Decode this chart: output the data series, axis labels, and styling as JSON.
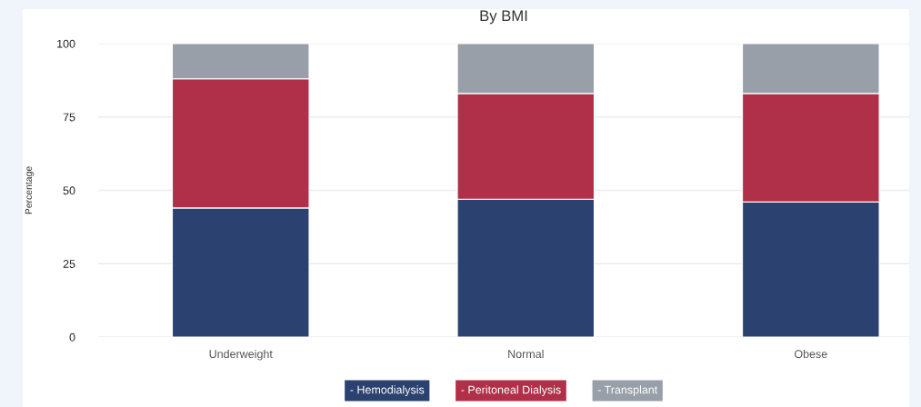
{
  "chart_data": {
    "type": "bar",
    "title": "By BMI",
    "ylabel": "Percentage",
    "categories": [
      "Underweight",
      "Normal",
      "Obese"
    ],
    "series": [
      {
        "name": "- Hemodialysis",
        "color": "#2b4270",
        "values": [
          44,
          47,
          46
        ]
      },
      {
        "name": "- Peritoneal Dialysis",
        "color": "#b13049",
        "values": [
          44,
          36,
          37
        ]
      },
      {
        "name": "- Transplant",
        "color": "#989fa8",
        "values": [
          12,
          17,
          17
        ]
      }
    ],
    "stacked": true,
    "ylim": [
      0,
      100
    ],
    "yticks": [
      0,
      25,
      50,
      75,
      100
    ],
    "grid": "y",
    "legend": "bottom"
  }
}
